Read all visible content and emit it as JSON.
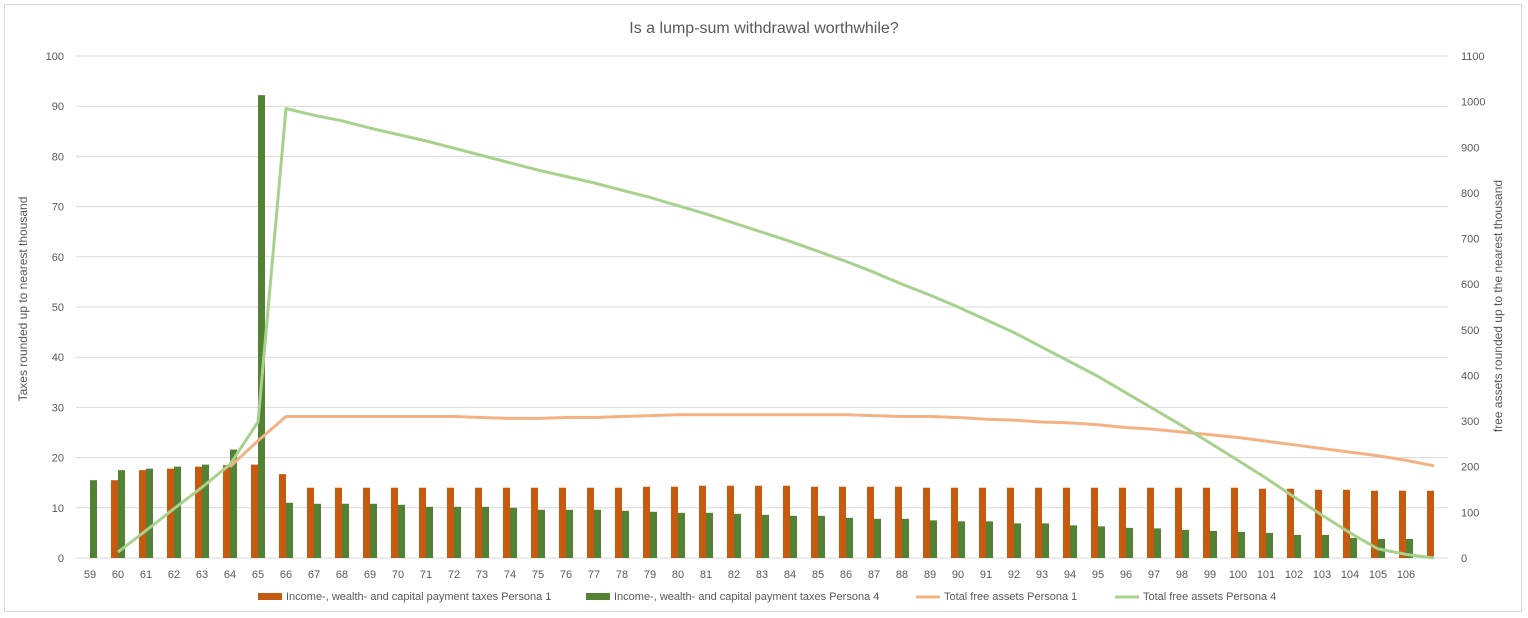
{
  "chart_data": {
    "type": "bar",
    "title": "Is a lump-sum withdrawal worthwhile?",
    "ylabel": "Taxes rounded up to nearest thousand",
    "y2label": "free assets rounded up to the nearest thousand",
    "ylim": [
      0,
      100
    ],
    "y2lim": [
      0,
      1100
    ],
    "yticks": [
      0,
      10,
      20,
      30,
      40,
      50,
      60,
      70,
      80,
      90,
      100
    ],
    "y2ticks": [
      0,
      100,
      200,
      300,
      400,
      500,
      600,
      700,
      800,
      900,
      1000,
      1100
    ],
    "grid": true,
    "legend_position": "bottom",
    "categories": [
      "59",
      "60",
      "61",
      "62",
      "63",
      "64",
      "65",
      "66",
      "67",
      "68",
      "69",
      "70",
      "71",
      "72",
      "73",
      "74",
      "75",
      "76",
      "77",
      "78",
      "79",
      "80",
      "81",
      "82",
      "83",
      "84",
      "85",
      "86",
      "87",
      "88",
      "89",
      "90",
      "91",
      "92",
      "93",
      "94",
      "95",
      "96",
      "97",
      "98",
      "99",
      "100",
      "101",
      "102",
      "103",
      "104",
      "105",
      "106",
      ""
    ],
    "series": [
      {
        "name": "Income-, wealth- and capital payment taxes Persona 1",
        "kind": "bar",
        "axis": "left",
        "color": "#c55a11",
        "values": [
          null,
          15.5,
          17.5,
          17.8,
          18.2,
          18.5,
          18.6,
          16.7,
          14.0,
          14.0,
          14.0,
          14.0,
          14.0,
          14.0,
          14.0,
          14.0,
          14.0,
          14.0,
          14.0,
          14.0,
          14.2,
          14.2,
          14.4,
          14.4,
          14.4,
          14.4,
          14.2,
          14.2,
          14.2,
          14.2,
          14.0,
          14.0,
          14.0,
          14.0,
          14.0,
          14.0,
          14.0,
          14.0,
          14.0,
          14.0,
          14.0,
          14.0,
          13.8,
          13.8,
          13.6,
          13.6,
          13.4,
          13.4,
          13.4
        ]
      },
      {
        "name": "Income-, wealth- and capital payment taxes Persona 4",
        "kind": "bar",
        "axis": "left",
        "color": "#548235",
        "values": [
          15.5,
          17.5,
          17.8,
          18.2,
          18.6,
          21.6,
          92.2,
          11.0,
          10.8,
          10.8,
          10.8,
          10.6,
          10.2,
          10.2,
          10.2,
          10.0,
          9.6,
          9.6,
          9.6,
          9.4,
          9.2,
          9.0,
          9.0,
          8.8,
          8.6,
          8.4,
          8.4,
          8.0,
          7.8,
          7.8,
          7.5,
          7.3,
          7.3,
          6.9,
          6.9,
          6.5,
          6.3,
          6.0,
          5.9,
          5.6,
          5.4,
          5.2,
          5.0,
          4.6,
          4.6,
          4.0,
          3.8,
          3.8,
          null
        ]
      },
      {
        "name": "Total free assets Persona 1",
        "kind": "line",
        "axis": "right",
        "color": "#f4b183",
        "values": [
          null,
          null,
          null,
          null,
          null,
          200,
          257,
          310,
          310,
          310,
          310,
          310,
          310,
          310,
          308,
          306,
          306,
          308,
          308,
          310,
          312,
          314,
          314,
          314,
          314,
          314,
          314,
          314,
          312,
          310,
          310,
          308,
          304,
          302,
          298,
          296,
          292,
          286,
          282,
          276,
          270,
          264,
          256,
          248,
          240,
          232,
          224,
          214,
          202
        ]
      },
      {
        "name": "Total free assets Persona 4",
        "kind": "line",
        "axis": "right",
        "color": "#a9d18e",
        "values": [
          null,
          13,
          60,
          108,
          155,
          205,
          298,
          985,
          970,
          958,
          942,
          928,
          914,
          898,
          882,
          866,
          850,
          836,
          822,
          806,
          790,
          772,
          754,
          734,
          714,
          694,
          672,
          650,
          626,
          600,
          576,
          550,
          522,
          494,
          462,
          430,
          398,
          362,
          326,
          290,
          252,
          214,
          175,
          134,
          94,
          55,
          20,
          8,
          0
        ]
      }
    ]
  }
}
